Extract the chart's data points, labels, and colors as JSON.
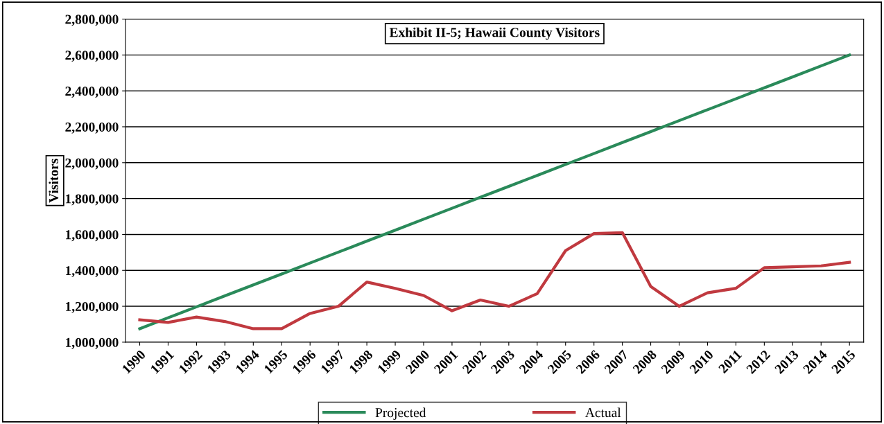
{
  "chart_data": {
    "type": "line",
    "title": "Exhibit II-5; Hawaii County Visitors",
    "ylabel": "Visitors",
    "categories": [
      "1990",
      "1991",
      "1992",
      "1993",
      "1994",
      "1995",
      "1996",
      "1997",
      "1998",
      "1999",
      "2000",
      "2001",
      "2002",
      "2003",
      "2004",
      "2005",
      "2006",
      "2007",
      "2008",
      "2009",
      "2010",
      "2011",
      "2012",
      "2013",
      "2014",
      "2015"
    ],
    "series": [
      {
        "name": "Projected",
        "color": "#2a8a5a",
        "values": [
          1075000,
          1136000,
          1197000,
          1258000,
          1319000,
          1380000,
          1441000,
          1502000,
          1563000,
          1624000,
          1685000,
          1746000,
          1807000,
          1868000,
          1929000,
          1990000,
          2051000,
          2112000,
          2173000,
          2234000,
          2295000,
          2356000,
          2417000,
          2478000,
          2539000,
          2600000
        ]
      },
      {
        "name": "Actual",
        "color": "#c0393f",
        "values": [
          1125000,
          1110000,
          1140000,
          1115000,
          1075000,
          1075000,
          1160000,
          1200000,
          1335000,
          1300000,
          1260000,
          1175000,
          1235000,
          1200000,
          1270000,
          1510000,
          1605000,
          1610000,
          1310000,
          1200000,
          1275000,
          1300000,
          1415000,
          1420000,
          1425000,
          1445000
        ]
      }
    ],
    "ylim": [
      1000000,
      2800000
    ],
    "yticks": [
      {
        "value": 1000000,
        "label": "1,000,000"
      },
      {
        "value": 1200000,
        "label": "1,200,000"
      },
      {
        "value": 1400000,
        "label": "1,400,000"
      },
      {
        "value": 1600000,
        "label": "1,600,000"
      },
      {
        "value": 1800000,
        "label": "1,800,000"
      },
      {
        "value": 2000000,
        "label": "2,000,000"
      },
      {
        "value": 2200000,
        "label": "2,200,000"
      },
      {
        "value": 2400000,
        "label": "2,400,000"
      },
      {
        "value": 2600000,
        "label": "2,600,000"
      },
      {
        "value": 2800000,
        "label": "2,800,000"
      }
    ],
    "grid": "y",
    "legend": "bottom",
    "marker": "none",
    "line_style": "solid"
  }
}
